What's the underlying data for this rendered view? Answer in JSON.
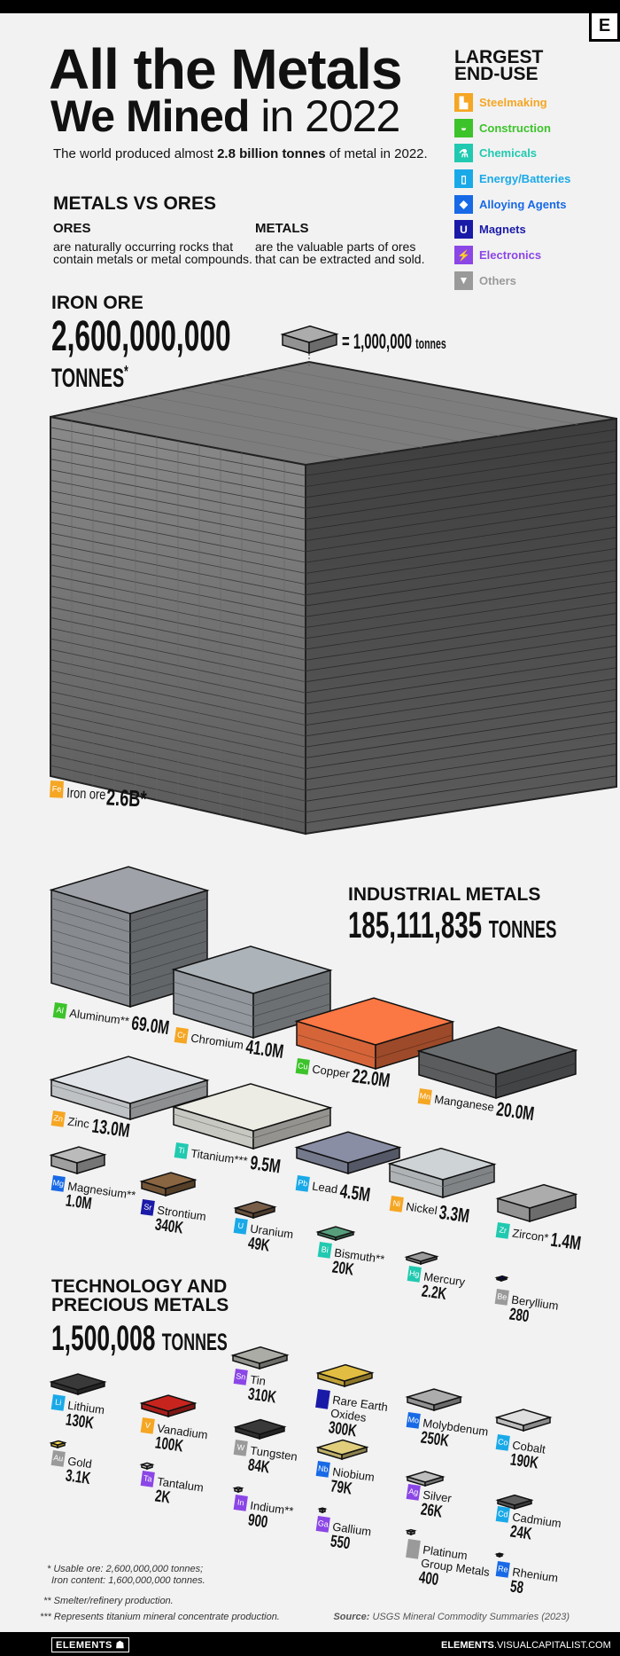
{
  "header": {
    "logo": "E",
    "title_line1": "All the Metals",
    "title_bold": "We Mined",
    "title_light": "in 2022",
    "subtitle_pre": "The world produced almost ",
    "subtitle_bold": "2.8 billion tonnes",
    "subtitle_post": " of metal in 2022."
  },
  "legend": {
    "title1": "LARGEST",
    "title2": "END-USE",
    "items": [
      {
        "key": "steel",
        "label": "Steelmaking",
        "color": "#f5a623",
        "icon": "factory-icon",
        "glyph": "▙"
      },
      {
        "key": "constr",
        "label": "Construction",
        "color": "#3cc32a",
        "icon": "hardhat-icon",
        "glyph": "◒"
      },
      {
        "key": "chem",
        "label": "Chemicals",
        "color": "#21c9b0",
        "icon": "flask-icon",
        "glyph": "⚗"
      },
      {
        "key": "energy",
        "label": "Energy/Batteries",
        "color": "#1aa9e8",
        "icon": "battery-icon",
        "glyph": "▯"
      },
      {
        "key": "alloy",
        "label": "Alloying Agents",
        "color": "#1769e6",
        "icon": "bar-icon",
        "glyph": "◆"
      },
      {
        "key": "magnet",
        "label": "Magnets",
        "color": "#1a1aa8",
        "icon": "magnet-icon",
        "glyph": "U"
      },
      {
        "key": "elec",
        "label": "Electronics",
        "color": "#8b46e6",
        "icon": "plug-icon",
        "glyph": "⚡"
      },
      {
        "key": "other",
        "label": "Others",
        "color": "#9a9a9a",
        "icon": "gem-icon",
        "glyph": "▼"
      }
    ]
  },
  "intro": {
    "heading": "METALS VS ORES",
    "ores_title": "ORES",
    "ores_l1": "are naturally occurring rocks that",
    "ores_l2": "contain metals or metal compounds.",
    "metals_title": "METALS",
    "metals_l1": "are the valuable parts of ores",
    "metals_l2": "that can be extracted and sold."
  },
  "iron": {
    "heading": "IRON ORE",
    "total": "2,600,000,000",
    "unit": "TONNES",
    "asterisk": "*",
    "scale": "= 1,000,000",
    "scale_unit": "tonnes",
    "symbol": "Fe",
    "name": "Iron ore",
    "value": "2.6B*",
    "category": "steel"
  },
  "industrial": {
    "heading": "INDUSTRIAL METALS",
    "total": "185,111,835",
    "unit": "TONNES",
    "metals": [
      {
        "sym": "Al",
        "name": "Aluminum**",
        "value": "69.0M",
        "category": "constr"
      },
      {
        "sym": "Cr",
        "name": "Chromium",
        "value": "41.0M",
        "category": "steel"
      },
      {
        "sym": "Cu",
        "name": "Copper",
        "value": "22.0M",
        "category": "constr"
      },
      {
        "sym": "Mn",
        "name": "Manganese",
        "value": "20.0M",
        "category": "steel"
      },
      {
        "sym": "Zn",
        "name": "Zinc",
        "value": "13.0M",
        "category": "steel"
      },
      {
        "sym": "Ti",
        "name": "Titanium***",
        "value": "9.5M",
        "category": "chem"
      },
      {
        "sym": "Pb",
        "name": "Lead",
        "value": "4.5M",
        "category": "energy"
      },
      {
        "sym": "Ni",
        "name": "Nickel",
        "value": "3.3M",
        "category": "steel"
      },
      {
        "sym": "Zr",
        "name": "Zircon*",
        "value": "1.4M",
        "category": "chem"
      },
      {
        "sym": "Mg",
        "name": "Magnesium**",
        "value": "1.0M",
        "category": "alloy"
      },
      {
        "sym": "Sr",
        "name": "Strontium",
        "value": "340K",
        "category": "magnet"
      },
      {
        "sym": "U",
        "name": "Uranium",
        "value": "49K",
        "category": "energy"
      },
      {
        "sym": "Bi",
        "name": "Bismuth**",
        "value": "20K",
        "category": "chem"
      },
      {
        "sym": "Hg",
        "name": "Mercury",
        "value": "2.2K",
        "category": "chem"
      },
      {
        "sym": "Be",
        "name": "Beryllium",
        "value": "280",
        "category": "other"
      }
    ]
  },
  "tech": {
    "heading1": "TECHNOLOGY AND",
    "heading2": "PRECIOUS METALS",
    "total": "1,500,008",
    "unit": "TONNES",
    "metals": [
      {
        "sym": "Li",
        "name": "Lithium",
        "value": "130K",
        "category": "energy"
      },
      {
        "sym": "Au",
        "name": "Gold",
        "value": "3.1K",
        "category": "other"
      },
      {
        "sym": "V",
        "name": "Vanadium",
        "value": "100K",
        "category": "steel"
      },
      {
        "sym": "Ta",
        "name": "Tantalum",
        "value": "2K",
        "category": "elec"
      },
      {
        "sym": "Sn",
        "name": "Tin",
        "value": "310K",
        "category": "elec"
      },
      {
        "sym": "W",
        "name": "Tungsten",
        "value": "84K",
        "category": "other"
      },
      {
        "sym": "In",
        "name": "Indium**",
        "value": "900",
        "category": "elec"
      },
      {
        "sym": "",
        "name": "Rare Earth",
        "name2": "Oxides",
        "value": "300K",
        "category": "magnet"
      },
      {
        "sym": "Nb",
        "name": "Niobium",
        "value": "79K",
        "category": "alloy"
      },
      {
        "sym": "Ga",
        "name": "Gallium",
        "value": "550",
        "category": "elec"
      },
      {
        "sym": "Mo",
        "name": "Molybdenum",
        "value": "250K",
        "category": "alloy"
      },
      {
        "sym": "Ag",
        "name": "Silver",
        "value": "26K",
        "category": "elec"
      },
      {
        "sym": "",
        "name": "Platinum",
        "name2": "Group Metals",
        "value": "400",
        "category": "other"
      },
      {
        "sym": "Co",
        "name": "Cobalt",
        "value": "190K",
        "category": "energy"
      },
      {
        "sym": "Cd",
        "name": "Cadmium",
        "value": "24K",
        "category": "energy"
      },
      {
        "sym": "Re",
        "name": "Rhenium",
        "value": "58",
        "category": "alloy"
      }
    ]
  },
  "footnotes": {
    "f1a": "* Usable ore: 2,600,000,000 tonnes;",
    "f1b": "Iron content: 1,600,000,000 tonnes.",
    "f2": "** Smelter/refinery production.",
    "f3": "*** Represents titanium mineral concentrate production.",
    "source_label": "Source:",
    "source": " USGS Mineral Commodity Summaries (2023)"
  },
  "footer": {
    "brand": "ELEMENTS",
    "site_bold": "ELEMENTS",
    "site": ".VISUALCAPITALIST.COM"
  }
}
